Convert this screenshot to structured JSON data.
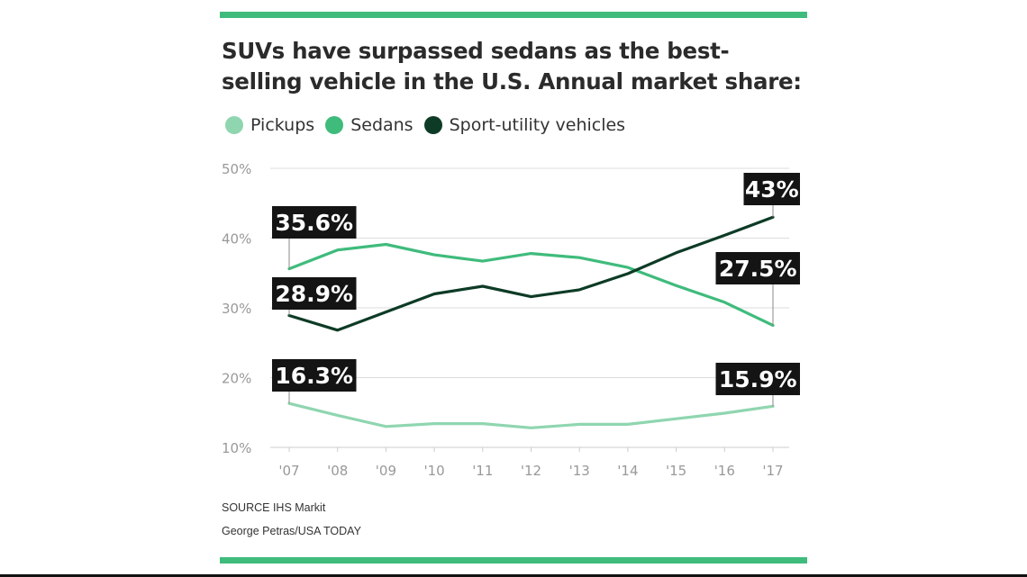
{
  "title": "SUVs have surpassed sedans as the best-selling vehicle in the U.S. Annual market share:",
  "source": "SOURCE IHS Markit",
  "credit": "George Petras/USA TODAY",
  "colors": {
    "accent_rule": "#3fbb7c",
    "pickups": "#8fd6b0",
    "sedans": "#3fbb7c",
    "suv": "#0d3b26",
    "label_bg": "#141414",
    "label_text": "#ffffff",
    "grid": "#dddddd",
    "tick_text": "#999999"
  },
  "chart_data": {
    "type": "line",
    "title": "SUVs have surpassed sedans as the best-selling vehicle in the U.S. Annual market share:",
    "xlabel": "",
    "ylabel": "",
    "categories": [
      "'07",
      "'08",
      "'09",
      "'10",
      "'11",
      "'12",
      "'13",
      "'14",
      "'15",
      "'16",
      "'17"
    ],
    "ylim": [
      10,
      50
    ],
    "yticks": [
      10,
      20,
      30,
      40,
      50
    ],
    "ytick_labels": [
      "10%",
      "20%",
      "30%",
      "40%",
      "50%"
    ],
    "grid": true,
    "legend_position": "top-left",
    "series": [
      {
        "name": "Pickups",
        "key": "pickups",
        "values": [
          16.3,
          14.6,
          13.0,
          13.4,
          13.4,
          12.8,
          13.3,
          13.3,
          14.1,
          14.9,
          15.9
        ]
      },
      {
        "name": "Sedans",
        "key": "sedans",
        "values": [
          35.6,
          38.3,
          39.1,
          37.6,
          36.7,
          37.8,
          37.2,
          35.8,
          33.2,
          30.8,
          27.5
        ]
      },
      {
        "name": "Sport-utility vehicles",
        "key": "suv",
        "values": [
          28.9,
          26.8,
          29.4,
          32.0,
          33.1,
          31.6,
          32.6,
          34.9,
          37.9,
          40.4,
          43.0
        ]
      }
    ],
    "annotations": [
      {
        "series": "sedans",
        "index": 0,
        "text": "35.6%"
      },
      {
        "series": "suv",
        "index": 0,
        "text": "28.9%"
      },
      {
        "series": "pickups",
        "index": 0,
        "text": "16.3%"
      },
      {
        "series": "suv",
        "index": 10,
        "text": "43%"
      },
      {
        "series": "sedans",
        "index": 10,
        "text": "27.5%"
      },
      {
        "series": "pickups",
        "index": 10,
        "text": "15.9%"
      }
    ]
  }
}
